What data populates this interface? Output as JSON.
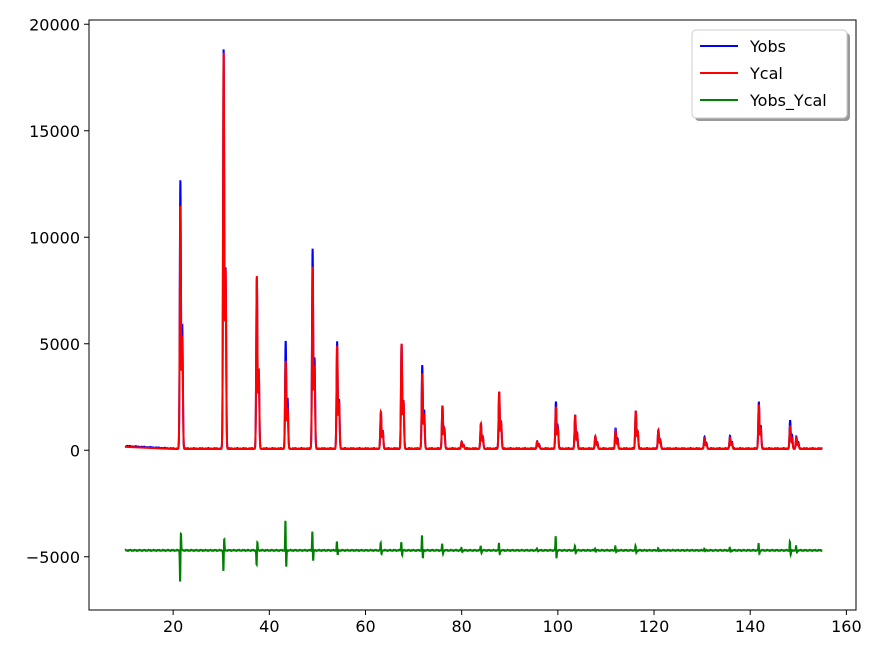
{
  "chart_data": {
    "type": "line",
    "title": "",
    "xlabel": "",
    "ylabel": "",
    "xlim": [
      2.5,
      162
    ],
    "ylim": [
      -7500,
      20200
    ],
    "x_ticks": [
      20,
      40,
      60,
      80,
      100,
      120,
      140,
      160
    ],
    "x_tick_labels": [
      "20",
      "40",
      "60",
      "80",
      "100",
      "120",
      "140",
      "160"
    ],
    "y_ticks": [
      20000,
      15000,
      10000,
      5000,
      0,
      -5000
    ],
    "y_tick_labels": [
      "20000",
      "15000",
      "10000",
      "5000",
      "0",
      "−5000"
    ],
    "grid": false,
    "legend_position": "top-right",
    "x_range": [
      10,
      155
    ],
    "peaks": [
      {
        "x": 21.5,
        "yobs": 12700,
        "ycal": 11500,
        "diff": -6200
      },
      {
        "x": 30.5,
        "yobs": 18850,
        "ycal": 18700,
        "diff": -5700
      },
      {
        "x": 37.4,
        "yobs": 8100,
        "ycal": 8200,
        "diff": -5400
      },
      {
        "x": 43.4,
        "yobs": 5150,
        "ycal": 4200,
        "diff": -3300
      },
      {
        "x": 49.0,
        "yobs": 9450,
        "ycal": 8600,
        "diff": -3800
      },
      {
        "x": 54.1,
        "yobs": 5100,
        "ycal": 4900,
        "diff": -4300
      },
      {
        "x": 63.2,
        "yobs": 1800,
        "ycal": 1800,
        "diff": -4350
      },
      {
        "x": 67.5,
        "yobs": 5000,
        "ycal": 5000,
        "diff": -4300
      },
      {
        "x": 71.8,
        "yobs": 4000,
        "ycal": 3600,
        "diff": -4000
      },
      {
        "x": 76.0,
        "yobs": 2100,
        "ycal": 2100,
        "diff": -4400
      },
      {
        "x": 80.0,
        "yobs": 400,
        "ycal": 400,
        "diff": -4600
      },
      {
        "x": 84.0,
        "yobs": 1250,
        "ycal": 1250,
        "diff": -4500
      },
      {
        "x": 87.8,
        "yobs": 2750,
        "ycal": 2750,
        "diff": -4400
      },
      {
        "x": 95.7,
        "yobs": 420,
        "ycal": 420,
        "diff": -4600
      },
      {
        "x": 99.6,
        "yobs": 2300,
        "ycal": 2050,
        "diff": -4050
      },
      {
        "x": 103.6,
        "yobs": 1650,
        "ycal": 1650,
        "diff": -4500
      },
      {
        "x": 107.8,
        "yobs": 650,
        "ycal": 650,
        "diff": -4600
      },
      {
        "x": 112.0,
        "yobs": 1050,
        "ycal": 900,
        "diff": -4500
      },
      {
        "x": 116.2,
        "yobs": 1850,
        "ycal": 1850,
        "diff": -4500
      },
      {
        "x": 120.9,
        "yobs": 950,
        "ycal": 950,
        "diff": -4600
      },
      {
        "x": 130.5,
        "yobs": 620,
        "ycal": 560,
        "diff": -4600
      },
      {
        "x": 135.8,
        "yobs": 700,
        "ycal": 600,
        "diff": -4600
      },
      {
        "x": 141.8,
        "yobs": 2300,
        "ycal": 2150,
        "diff": -4400
      },
      {
        "x": 148.3,
        "yobs": 1400,
        "ycal": 1150,
        "diff": -4300
      },
      {
        "x": 149.6,
        "yobs": 650,
        "ycal": 600,
        "diff": -4500
      }
    ],
    "series": [
      {
        "name": "Yobs",
        "color": "#0000ff",
        "baseline": 80
      },
      {
        "name": "Ycal",
        "color": "#ff0000",
        "baseline": 60
      },
      {
        "name": "Yobs_Ycal",
        "color": "#008000",
        "baseline": -4700
      }
    ]
  }
}
